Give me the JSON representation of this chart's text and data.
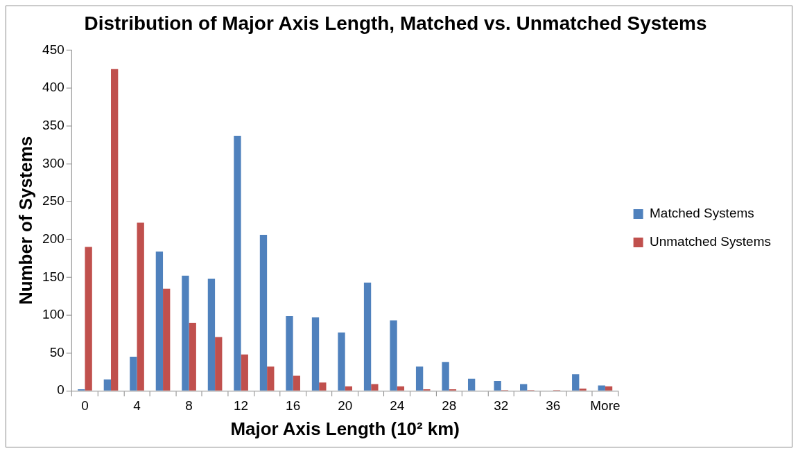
{
  "chart_data": {
    "type": "bar",
    "title": "Distribution of Major Axis Length, Matched vs. Unmatched Systems",
    "xlabel": "Major Axis Length (10² km)",
    "ylabel": "Number of Systems",
    "categories": [
      "0",
      null,
      "4",
      null,
      "8",
      null,
      "12",
      null,
      "16",
      null,
      "20",
      null,
      "24",
      null,
      "28",
      null,
      "32",
      null,
      "36",
      null,
      "More"
    ],
    "series": [
      {
        "name": "Matched Systems",
        "color": "#4f81bd",
        "values": [
          2,
          15,
          45,
          184,
          152,
          148,
          337,
          206,
          99,
          97,
          77,
          143,
          93,
          32,
          38,
          16,
          13,
          9,
          0,
          22,
          7
        ]
      },
      {
        "name": "Unmatched Systems",
        "color": "#c0504d",
        "values": [
          190,
          425,
          222,
          135,
          90,
          71,
          48,
          32,
          20,
          11,
          6,
          9,
          6,
          2,
          2,
          0,
          1,
          1,
          1,
          3,
          6
        ]
      }
    ],
    "ylim": [
      0,
      450
    ],
    "yticks": [
      0,
      50,
      100,
      150,
      200,
      250,
      300,
      350,
      400,
      450
    ],
    "grid": false,
    "legend": "right"
  }
}
